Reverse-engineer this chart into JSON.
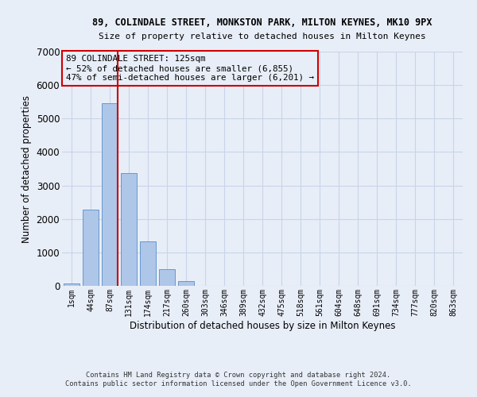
{
  "title": "89, COLINDALE STREET, MONKSTON PARK, MILTON KEYNES, MK10 9PX",
  "subtitle": "Size of property relative to detached houses in Milton Keynes",
  "xlabel": "Distribution of detached houses by size in Milton Keynes",
  "ylabel": "Number of detached properties",
  "footnote1": "Contains HM Land Registry data © Crown copyright and database right 2024.",
  "footnote2": "Contains public sector information licensed under the Open Government Licence v3.0.",
  "bar_labels": [
    "1sqm",
    "44sqm",
    "87sqm",
    "131sqm",
    "174sqm",
    "217sqm",
    "260sqm",
    "303sqm",
    "346sqm",
    "389sqm",
    "432sqm",
    "475sqm",
    "518sqm",
    "561sqm",
    "604sqm",
    "648sqm",
    "691sqm",
    "734sqm",
    "777sqm",
    "820sqm",
    "863sqm"
  ],
  "bar_values": [
    70,
    2270,
    5450,
    3380,
    1340,
    490,
    150,
    0,
    0,
    0,
    0,
    0,
    0,
    0,
    0,
    0,
    0,
    0,
    0,
    0,
    0
  ],
  "bar_color": "#aec6e8",
  "bar_edge_color": "#6699cc",
  "grid_color": "#c8d4e8",
  "background_color": "#e8eef8",
  "vline_color": "#cc0000",
  "annotation_text": "89 COLINDALE STREET: 125sqm\n← 52% of detached houses are smaller (6,855)\n47% of semi-detached houses are larger (6,201) →",
  "annotation_box_color": "#cc0000",
  "ylim": [
    0,
    7000
  ],
  "yticks": [
    0,
    1000,
    2000,
    3000,
    4000,
    5000,
    6000,
    7000
  ]
}
